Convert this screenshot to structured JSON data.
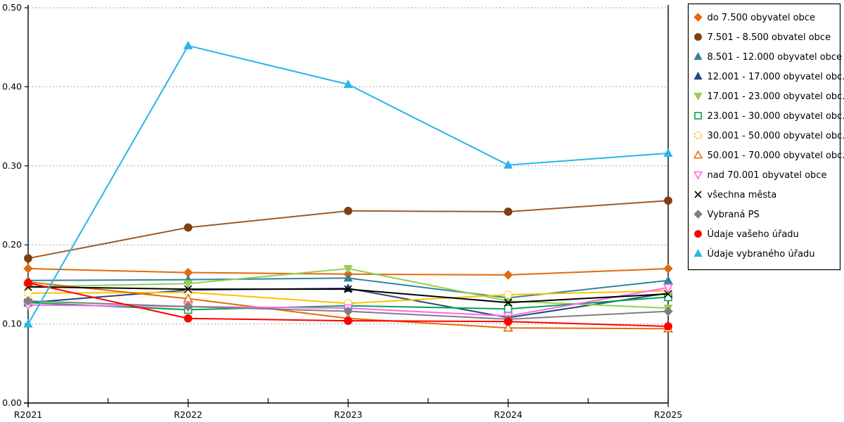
{
  "chart_data": {
    "type": "line",
    "title": "",
    "xlabel": "",
    "ylabel": "",
    "x_categories": [
      "R2021",
      "R2022",
      "R2023",
      "R2024",
      "R2025"
    ],
    "y_axis": {
      "min": 0.0,
      "max": 0.5,
      "tick_step": 0.1,
      "tick_labels": [
        "0.00",
        "0.10",
        "0.20",
        "0.30",
        "0.40",
        "0.50"
      ]
    },
    "grid": "horizontal-dotted",
    "legend_position": "right",
    "series": [
      {
        "name": "do 7.500 obyvatel obce",
        "marker": "diamond",
        "fill": "filled",
        "color": "#E4690B",
        "values": [
          0.17,
          0.165,
          0.163,
          0.162,
          0.17
        ]
      },
      {
        "name": "7.501 - 8.500 obvatel obce",
        "marker": "circle",
        "fill": "filled",
        "color": "#7F3F10",
        "line_color": "#A05A24",
        "values": [
          0.183,
          0.222,
          0.243,
          0.242,
          0.256
        ]
      },
      {
        "name": "8.501 - 12.000 obyvatel obce",
        "marker": "triangle-up",
        "fill": "filled",
        "color": "#31849B",
        "values": [
          0.155,
          0.156,
          0.158,
          0.133,
          0.155
        ]
      },
      {
        "name": "12.001 - 17.000 obyvatel obc...",
        "marker": "triangle-up",
        "fill": "filled",
        "color": "#1F497D",
        "values": [
          0.127,
          0.143,
          0.145,
          0.108,
          0.139
        ]
      },
      {
        "name": "17.001 - 23.000 obyvatel obc...",
        "marker": "triangle-down",
        "fill": "filled",
        "color": "#92D050",
        "values": [
          0.147,
          0.151,
          0.17,
          0.129,
          0.12
        ]
      },
      {
        "name": "23.001 - 30.000 obyvatel obc...",
        "marker": "square",
        "fill": "open",
        "color": "#00A64F",
        "values": [
          0.127,
          0.118,
          0.123,
          0.119,
          0.134
        ]
      },
      {
        "name": "30.001 - 50.000 obyvatel obc...",
        "marker": "circle",
        "fill": "open",
        "color": "#FFC000",
        "values": [
          0.139,
          0.14,
          0.126,
          0.137,
          0.142
        ]
      },
      {
        "name": "50.001 - 70.000 obyvatel obc...",
        "marker": "triangle-up",
        "fill": "open",
        "color": "#E36C0A",
        "values": [
          0.153,
          0.132,
          0.107,
          0.095,
          0.094
        ]
      },
      {
        "name": "nad 70.001 obyvatel obce",
        "marker": "triangle-down",
        "fill": "open",
        "color": "#FF66F0",
        "values": [
          0.124,
          0.122,
          0.12,
          0.11,
          0.146
        ]
      },
      {
        "name": "všechna města",
        "marker": "x",
        "fill": "line",
        "color": "#000000",
        "values": [
          0.147,
          0.144,
          0.144,
          0.127,
          0.138
        ]
      },
      {
        "name": "Vybraná PS",
        "marker": "diamond",
        "fill": "filled",
        "color": "#7F7F7F",
        "values": [
          0.129,
          0.122,
          0.116,
          0.106,
          0.116
        ]
      },
      {
        "name": "Údaje vašeho úřadu",
        "marker": "circle",
        "fill": "filled",
        "color": "#FF0000",
        "values": [
          0.152,
          0.107,
          0.104,
          0.103,
          0.097
        ]
      },
      {
        "name": "Údaje vybraného úřadu",
        "marker": "triangle-up",
        "fill": "filled",
        "color": "#29B4EA",
        "values": [
          0.1,
          0.452,
          0.403,
          0.301,
          0.316
        ]
      }
    ],
    "colors": {
      "axis": "#000000",
      "gridline": "#A6A6A6",
      "legend_border": "#000000",
      "background": "#FFFFFF"
    }
  }
}
